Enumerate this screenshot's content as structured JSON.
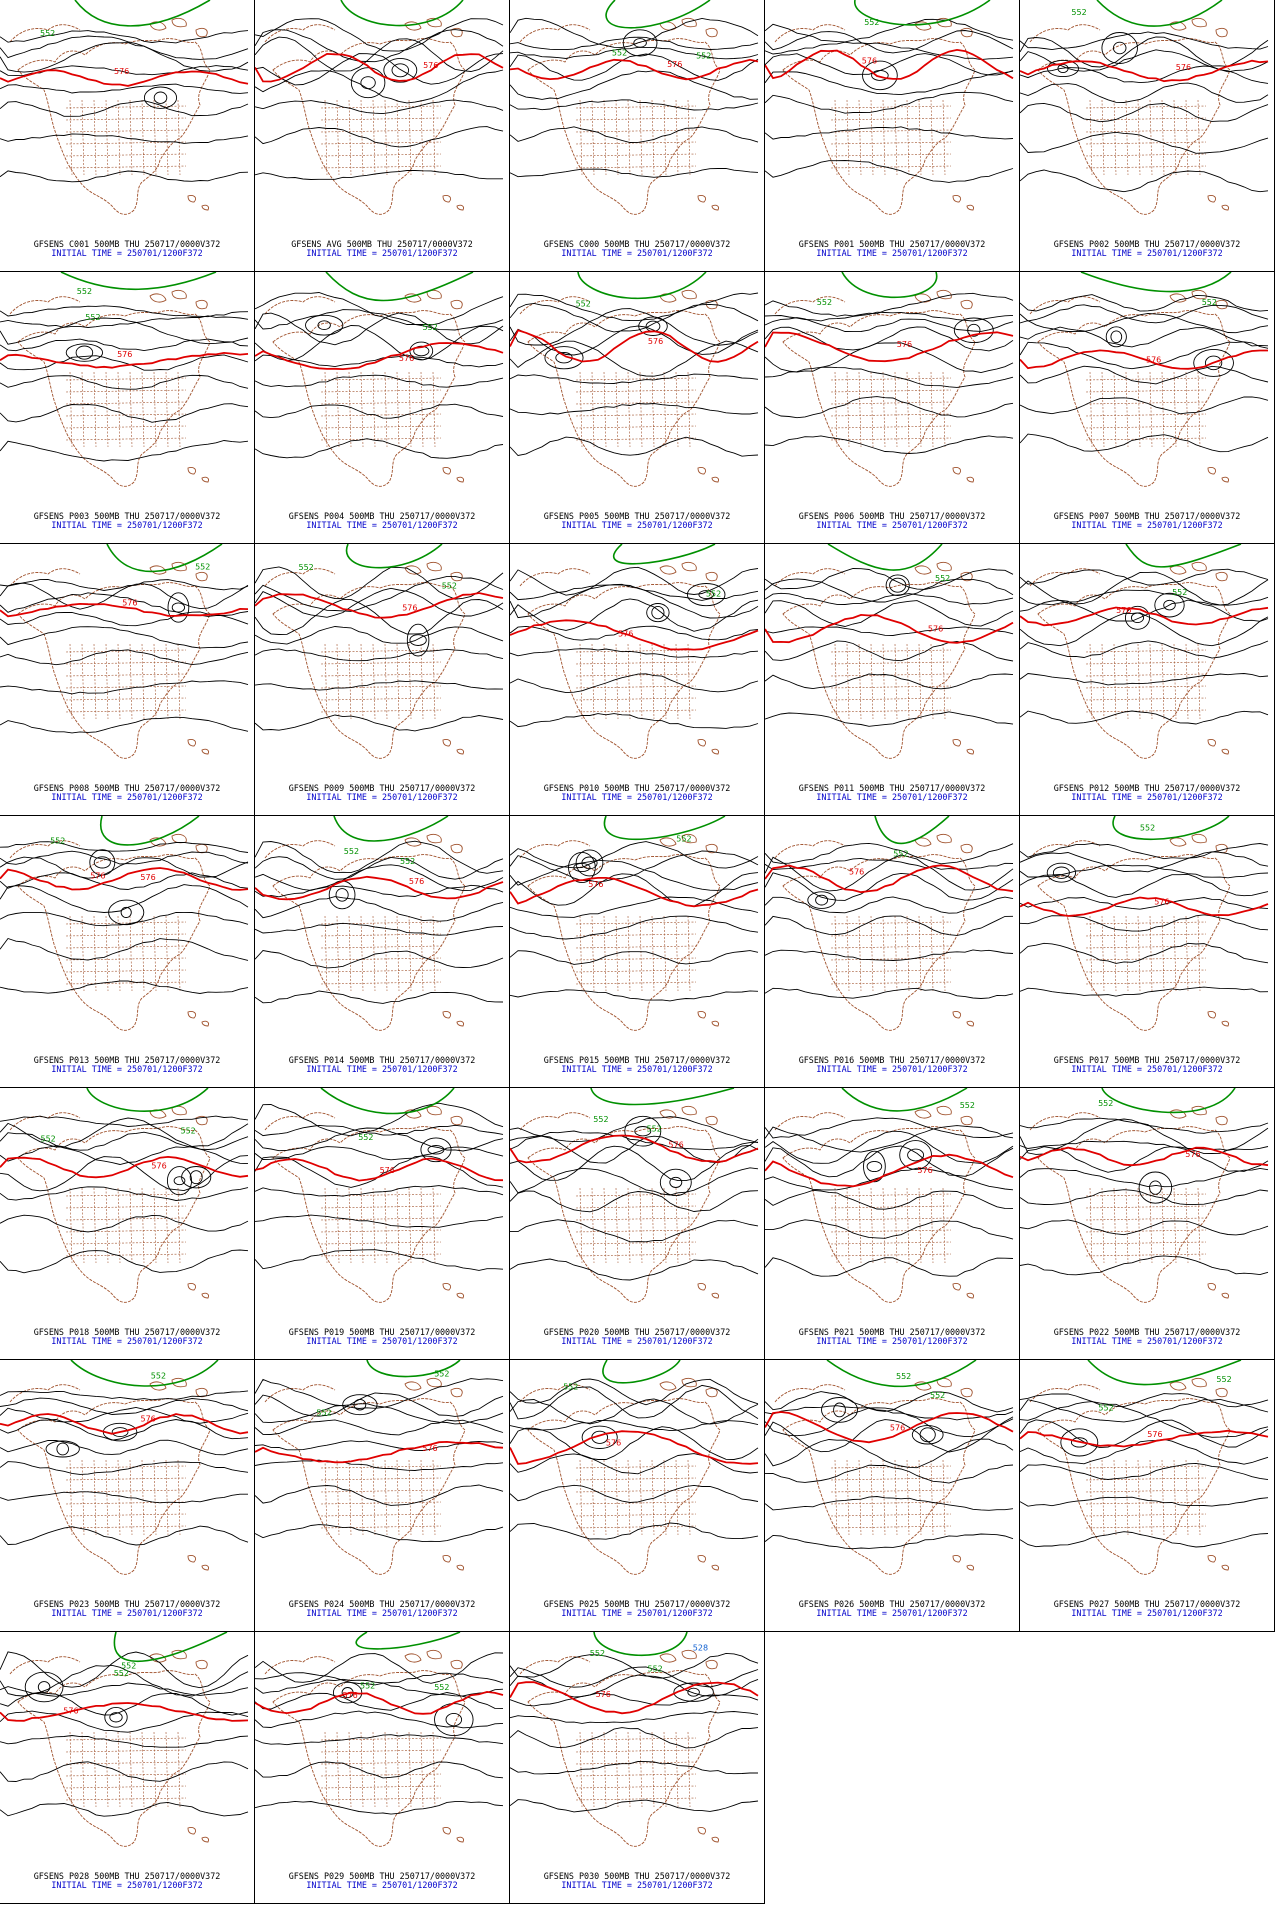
{
  "colors": {
    "contour": "#000000",
    "line_576": "#e00000",
    "line_552": "#009000",
    "line_528": "#1060d0",
    "map": "#a0522d",
    "caption_top": "#000000",
    "caption_bottom": "#0000cc"
  },
  "initial_time": "INITIAL TIME = 250701/1200F372",
  "panels": [
    {
      "title": "GFSENS C001 500MB THU 250717/0000V372",
      "labels": [
        "576",
        "552"
      ]
    },
    {
      "title": "GFSENS AVG 500MB THU 250717/0000V372",
      "labels": [
        "576"
      ]
    },
    {
      "title": "GFSENS C000 500MB THU 250717/0000V372",
      "labels": [
        "552",
        "552",
        "576"
      ]
    },
    {
      "title": "GFSENS P001 500MB THU 250717/0000V372",
      "labels": [
        "576",
        "552"
      ]
    },
    {
      "title": "GFSENS P002 500MB THU 250717/0000V372",
      "labels": [
        "552",
        "576"
      ]
    },
    {
      "title": "GFSENS P003 500MB THU 250717/0000V372",
      "labels": [
        "552",
        "552",
        "576"
      ]
    },
    {
      "title": "GFSENS P004 500MB THU 250717/0000V372",
      "labels": [
        "552",
        "576"
      ]
    },
    {
      "title": "GFSENS P005 500MB THU 250717/0000V372",
      "labels": [
        "552",
        "576"
      ]
    },
    {
      "title": "GFSENS P006 500MB THU 250717/0000V372",
      "labels": [
        "552",
        "576"
      ]
    },
    {
      "title": "GFSENS P007 500MB THU 250717/0000V372",
      "labels": [
        "552",
        "576"
      ]
    },
    {
      "title": "GFSENS P008 500MB THU 250717/0000V372",
      "labels": [
        "552",
        "576"
      ]
    },
    {
      "title": "GFSENS P009 500MB THU 250717/0000V372",
      "labels": [
        "552",
        "552",
        "576"
      ]
    },
    {
      "title": "GFSENS P010 500MB THU 250717/0000V372",
      "labels": [
        "552",
        "576"
      ]
    },
    {
      "title": "GFSENS P011 500MB THU 250717/0000V372",
      "labels": [
        "552",
        "576"
      ]
    },
    {
      "title": "GFSENS P012 500MB THU 250717/0000V372",
      "labels": [
        "552",
        "576"
      ]
    },
    {
      "title": "GFSENS P013 500MB THU 250717/0000V372",
      "labels": [
        "552",
        "576",
        "576"
      ]
    },
    {
      "title": "GFSENS P014 500MB THU 250717/0000V372",
      "labels": [
        "552",
        "552",
        "576"
      ]
    },
    {
      "title": "GFSENS P015 500MB THU 250717/0000V372",
      "labels": [
        "552",
        "576"
      ]
    },
    {
      "title": "GFSENS P016 500MB THU 250717/0000V372",
      "labels": [
        "552",
        "576"
      ]
    },
    {
      "title": "GFSENS P017 500MB THU 250717/0000V372",
      "labels": [
        "552",
        "576"
      ]
    },
    {
      "title": "GFSENS P018 500MB THU 250717/0000V372",
      "labels": [
        "552",
        "552",
        "576"
      ]
    },
    {
      "title": "GFSENS P019 500MB THU 250717/0000V372",
      "labels": [
        "552",
        "576"
      ]
    },
    {
      "title": "GFSENS P020 500MB THU 250717/0000V372",
      "labels": [
        "552",
        "576",
        "552"
      ]
    },
    {
      "title": "GFSENS P021 500MB THU 250717/0000V372",
      "labels": [
        "552",
        "576"
      ]
    },
    {
      "title": "GFSENS P022 500MB THU 250717/0000V372",
      "labels": [
        "552",
        "576"
      ]
    },
    {
      "title": "GFSENS P023 500MB THU 250717/0000V372",
      "labels": [
        "552",
        "576"
      ]
    },
    {
      "title": "GFSENS P024 500MB THU 250717/0000V372",
      "labels": [
        "552",
        "552",
        "576"
      ]
    },
    {
      "title": "GFSENS P025 500MB THU 250717/0000V372",
      "labels": [
        "552",
        "576"
      ]
    },
    {
      "title": "GFSENS P026 500MB THU 250717/0000V372",
      "labels": [
        "552",
        "552",
        "576"
      ]
    },
    {
      "title": "GFSENS P027 500MB THU 250717/0000V372",
      "labels": [
        "552",
        "552",
        "576"
      ]
    },
    {
      "title": "GFSENS P028 500MB THU 250717/0000V372",
      "labels": [
        "552",
        "552",
        "576"
      ]
    },
    {
      "title": "GFSENS P029 500MB THU 250717/0000V372",
      "labels": [
        "552",
        "552",
        "576"
      ]
    },
    {
      "title": "GFSENS P030 500MB THU 250717/0000V372",
      "labels": [
        "528",
        "552",
        "552",
        "576"
      ]
    }
  ]
}
